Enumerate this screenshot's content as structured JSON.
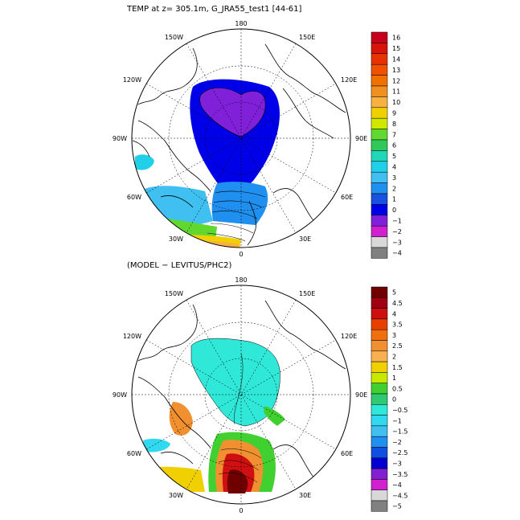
{
  "panels": [
    {
      "title": "TEMP at z= 305.1m, G_JRA55_test1 [44-61]",
      "lon_labels": [
        "180",
        "150E",
        "120E",
        "90E",
        "60E",
        "30E",
        "0",
        "30W",
        "60W",
        "90W",
        "120W",
        "150W"
      ],
      "colorbar": {
        "labels": [
          "16",
          "15",
          "14",
          "13",
          "12",
          "11",
          "10",
          "9",
          "8",
          "7",
          "6",
          "5",
          "4",
          "3",
          "2",
          "1",
          "0",
          "−1",
          "−2",
          "−3",
          "−4"
        ],
        "colors": [
          "#c8001e",
          "#d8140a",
          "#e83200",
          "#f05000",
          "#f07000",
          "#f09020",
          "#f8b040",
          "#f0d000",
          "#d0e800",
          "#60d830",
          "#30c858",
          "#20d8b8",
          "#20d0e8",
          "#40c0f0",
          "#2090f0",
          "#1850e0",
          "#0000e8",
          "#8020d8",
          "#d020d0",
          "#d8d8d8",
          "#808080"
        ]
      }
    },
    {
      "title": "(MODEL − LEVITUS/PHC2)",
      "lon_labels": [
        "180",
        "150E",
        "120E",
        "90E",
        "60E",
        "30E",
        "0",
        "30W",
        "60W",
        "90W",
        "120W",
        "150W"
      ],
      "colorbar": {
        "labels": [
          "5",
          "4.5",
          "4",
          "3.5",
          "3",
          "2.5",
          "2",
          "1.5",
          "1",
          "0.5",
          "0",
          "−0.5",
          "−1",
          "−1.5",
          "−2",
          "−2.5",
          "−3",
          "−3.5",
          "−4",
          "−4.5",
          "−5"
        ],
        "colors": [
          "#700000",
          "#a00010",
          "#d01010",
          "#e84000",
          "#f07010",
          "#f09030",
          "#f8b050",
          "#f0d000",
          "#c8e800",
          "#40d030",
          "#30c870",
          "#30e8d8",
          "#30d8f0",
          "#40c0f0",
          "#2090f0",
          "#1050e0",
          "#0000d0",
          "#8020d0",
          "#d020d0",
          "#d8d8d8",
          "#808080"
        ]
      }
    }
  ]
}
